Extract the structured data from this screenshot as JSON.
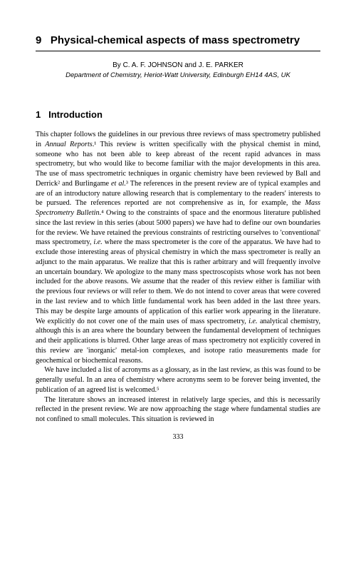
{
  "chapter": {
    "number": "9",
    "title": "Physical-chemical aspects of mass spectrometry"
  },
  "authors_prefix": "By ",
  "authors": "C. A. F. JOHNSON and J. E. PARKER",
  "affiliation": "Department of Chemistry, Heriot-Watt University, Edinburgh EH14 4AS, UK",
  "section": {
    "number": "1",
    "title": "Introduction"
  },
  "para1_a": "This chapter follows the guidelines in our previous three reviews of mass spectrometry published in ",
  "para1_ital1": "Annual Reports",
  "para1_b": ".¹ This review is written specifically with the physical chemist in mind, someone who has not been able to keep abreast of the recent rapid advances in mass spectrometry, but who would like to become familiar with the major developments in this area. The use of mass spectrometric techniques in organic chemistry have been reviewed by Ball and Derrick² and Burlingame ",
  "para1_ital2": "et al.",
  "para1_c": "³ The references in the present review are of typical examples and are of an introductory nature allowing research that is complementary to the readers' interests to be pursued. The references reported are not comprehensive as in, for example, the ",
  "para1_ital3": "Mass Spectrometry Bulletin",
  "para1_d": ".⁴ Owing to the constraints of space and the enormous literature published since the last review in this series (about 5000 papers) we have had to define our own boundaries for the review. We have retained the previous constraints of restricting ourselves to 'conventional' mass spectrometry, ",
  "para1_ital4": "i.e.",
  "para1_e": " where the mass spectrometer is the core of the apparatus. We have had to exclude those interesting areas of physical chemistry in which the mass spectrometer is really an adjunct to the main apparatus. We realize that this is rather arbitrary and will frequently involve an uncertain boundary. We apologize to the many mass spectroscopists whose work has not been included for the above reasons. We assume that the reader of this review either is familiar with the previous four reviews or will refer to them. We do not intend to cover areas that were covered in the last review and to which little fundamental work has been added in the last three years. This may be despite large amounts of application of this earlier work appearing in the literature. We explicitly do not cover one of the main uses of mass spectrometry, ",
  "para1_ital5": "i.e.",
  "para1_f": " analytical chemistry, although this is an area where the boundary between the fundamental development of techniques and their applications is blurred. Other large areas of mass spectrometry not explicitly covered in this review are 'inorganic' metal-ion complexes, and isotope ratio measurements made for geochemical or biochemical reasons.",
  "para2": "We have included a list of acronyms as a glossary, as in the last review, as this was found to be generally useful. In an area of chemistry where acronyms seem to be forever being invented, the publication of an agreed list is welcomed.⁵",
  "para3": "The literature shows an increased interest in relatively large species, and this is necessarily reflected in the present review. We are now approaching the stage where fundamental studies are not confined to small molecules. This situation is reviewed in",
  "page_number": "333"
}
